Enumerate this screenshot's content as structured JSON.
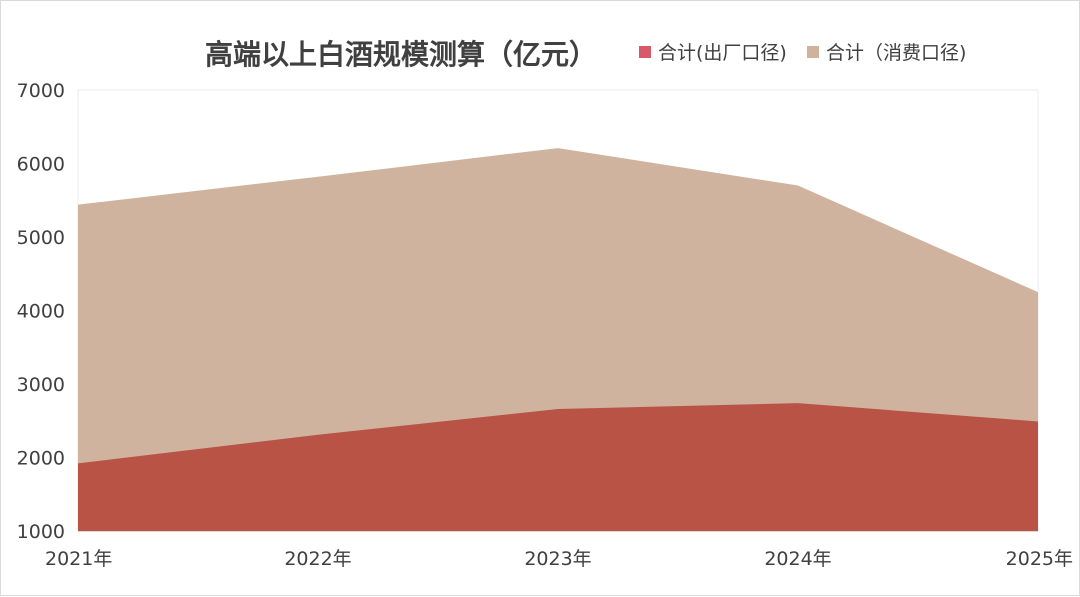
{
  "chart_data": {
    "type": "area",
    "title": "高端以上白酒规模测算（亿元）",
    "x": [
      "2021年",
      "2022年",
      "2023年",
      "2024年",
      "2025年"
    ],
    "ylim": [
      1000,
      7000
    ],
    "yticks": [
      1000,
      2000,
      3000,
      4000,
      5000,
      6000,
      7000
    ],
    "grid": false,
    "legend_position": "top-right",
    "series": [
      {
        "name": "合计(出厂口径)",
        "values": [
          1920,
          2310,
          2660,
          2740,
          2490
        ],
        "color": "#b85345",
        "legend_color": "#d65a6a"
      },
      {
        "name": "合计（消费口径)",
        "values": [
          5440,
          5820,
          6210,
          5700,
          4250
        ],
        "color": "#cfb39f",
        "legend_color": "#cfb39f"
      }
    ]
  }
}
